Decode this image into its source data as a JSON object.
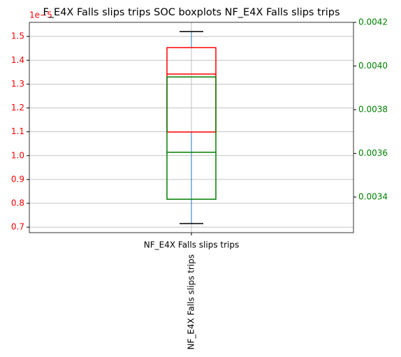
{
  "chart_data": {
    "type": "boxplot",
    "title": "F_E4X Falls slips trips SOC boxplots NF_E4X Falls slips trips",
    "offset_label": "1e−5",
    "xlabel": "NF_E4X Falls slips trips",
    "categories": [
      "NF_E4X Falls slips trips"
    ],
    "ylim": [
      0.677,
      1.559
    ],
    "yticks": [
      0.7,
      0.8,
      0.9,
      {
        "value": 1,
        "label": "1.0"
      },
      1.1,
      1.2,
      1.3,
      1.4,
      1.5
    ],
    "y2lim": [
      0.003237,
      0.0042
    ],
    "y2ticks": [
      0.0034,
      0.0036,
      0.0038,
      {
        "value": 0.004,
        "label": "0.0040"
      },
      0.0042
    ],
    "grid": true,
    "whisker_color": "#1f77b4",
    "cap_color": "#000000",
    "left_axis_color": "#ff0000",
    "right_axis_color": "#008000",
    "series": [
      {
        "color": "#ff0000",
        "axis": "y",
        "stats": [
          {
            "whislo": 0.715,
            "q1": 1.099,
            "med": 1.342,
            "q3": 1.453,
            "whishi": 1.52
          }
        ]
      },
      {
        "color": "#008000",
        "axis": "y2",
        "stats": [
          {
            "q1": 0.00339,
            "med": 0.003605,
            "q3": 0.00395
          }
        ]
      }
    ]
  }
}
